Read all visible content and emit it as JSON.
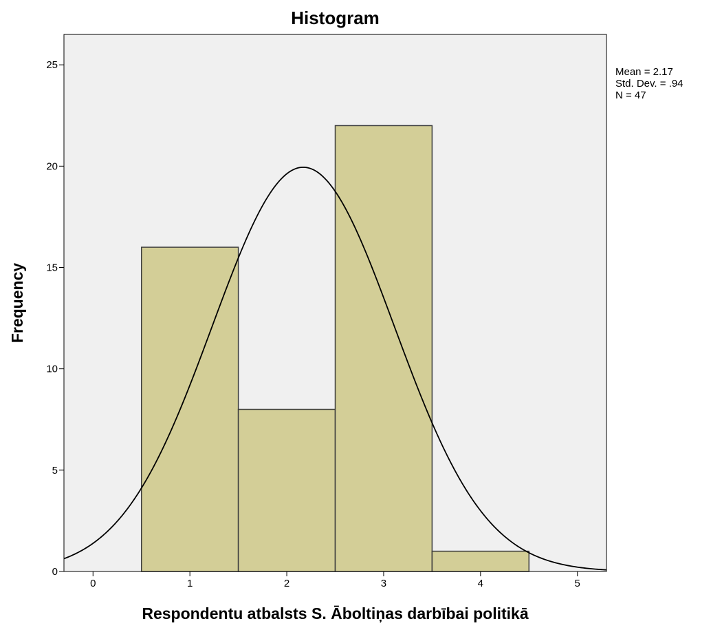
{
  "chart_data": {
    "type": "bar",
    "title": "Histogram",
    "xlabel": "Respondentu atbalsts S. Āboltiņas darbībai politikā",
    "ylabel": "Frequency",
    "bins": [
      {
        "from": 0.5,
        "to": 1.5,
        "count": 16
      },
      {
        "from": 1.5,
        "to": 2.5,
        "count": 8
      },
      {
        "from": 2.5,
        "to": 3.5,
        "count": 22
      },
      {
        "from": 3.5,
        "to": 4.5,
        "count": 1
      }
    ],
    "xlim": [
      -0.3,
      5.3
    ],
    "ylim": [
      0,
      26.5
    ],
    "xticks": [
      "0",
      "1",
      "2",
      "3",
      "4",
      "5"
    ],
    "yticks": [
      "0",
      "5",
      "10",
      "15",
      "20",
      "25"
    ],
    "normal_curve": {
      "mean": 2.17,
      "std": 0.94,
      "n": 47,
      "bin_width": 1
    },
    "stats": [
      "Mean = 2.17",
      "Std. Dev. = .94",
      "N = 47"
    ],
    "colors": {
      "plot_bg": "#f0f0f0",
      "bar_fill": "#d3ce97",
      "bar_stroke": "#3c3c3c",
      "curve": "#000000"
    }
  }
}
